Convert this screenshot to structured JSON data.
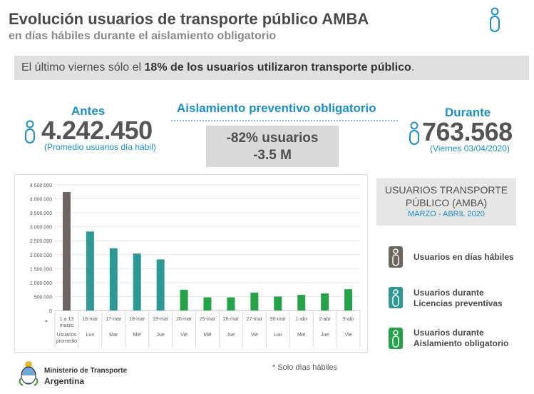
{
  "header": {
    "title": "Evolución usuarios de transporte público AMBA",
    "subtitle": "en días hábiles durante el aislamiento obligatorio"
  },
  "banner": {
    "pre": "El último viernes sólo el ",
    "bold": "18% de los usuarios utilizaron transporte público",
    "post": "."
  },
  "before": {
    "label": "Antes",
    "value": "4.242.450",
    "note": "(Promedio usuarios día hábil)"
  },
  "isolation": {
    "title": "Aislamiento preventivo obligatorio",
    "pct": "-82% usuarios",
    "abs": "-3.5 M"
  },
  "during": {
    "label": "Durante",
    "value": "763.568",
    "note": "(Viernes 03/04/2020)"
  },
  "legend": {
    "head_line1": "USUARIOS TRANSPORTE",
    "head_line2": "PÚBLICO (AMBA)",
    "head_line3": "MARZO - ABRIL 2020",
    "items": [
      {
        "line1": "Usuarios en días hábiles",
        "line2": "",
        "color": "#6f6560"
      },
      {
        "line1": "Usuarios durante",
        "line2": "Licencias preventivas",
        "color": "#2e9994"
      },
      {
        "line1": "Usuarios durante",
        "line2": "Aislamiento obligatorio",
        "color": "#24a348"
      }
    ]
  },
  "footer": {
    "ministry_line1": "Ministerio de Transporte",
    "ministry_line2": "Argentina",
    "footnote": "* Solo días hábiles"
  },
  "chart_data": {
    "type": "bar",
    "ylim": [
      0,
      4500000
    ],
    "yticks": [
      0,
      500000,
      1000000,
      1500000,
      2000000,
      2500000,
      3000000,
      3500000,
      4000000,
      4500000
    ],
    "ytick_labels": [
      "0",
      "500.000",
      "1.000.000",
      "1.500.000",
      "2.000.000",
      "2.500.000",
      "3.000.000",
      "3.500.000",
      "4.000.000",
      "4.500.000"
    ],
    "categories": [
      "1 a 13 marzo",
      "16-mar",
      "17-mar",
      "18-mar",
      "19-mar",
      "20-mar",
      "25-mar",
      "26-mar",
      "27-mar",
      "30-mar",
      "1-abr",
      "2-abr",
      "3-abr"
    ],
    "day_labels": [
      "Usuarios promedio",
      "Lun",
      "Mar",
      "Mié",
      "Jue",
      "Vie",
      "Mié",
      "Jue",
      "Vie",
      "Lun",
      "Mié",
      "Jue",
      "Vie"
    ],
    "values": [
      4242450,
      2830000,
      2230000,
      2040000,
      1830000,
      740000,
      470000,
      470000,
      640000,
      500000,
      560000,
      610000,
      763568
    ],
    "groups": [
      0,
      1,
      1,
      1,
      1,
      2,
      2,
      2,
      2,
      2,
      2,
      2,
      2
    ],
    "colors": [
      "#6f6560",
      "#2e9994",
      "#24a348"
    ],
    "first_note": "*",
    "grid": true
  }
}
